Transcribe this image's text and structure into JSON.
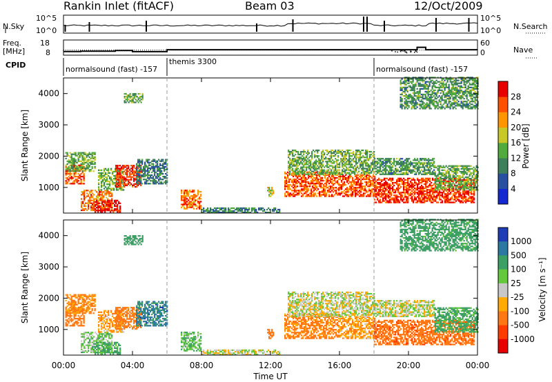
{
  "header": {
    "station": "Rankin Inlet (fitACF)",
    "beam": "Beam 03",
    "date": "12/Oct/2009"
  },
  "panel_labels": {
    "nsky": "N.Sky",
    "nsearch": "N.Search",
    "freq_line1": "Freq.",
    "freq_line2": "[MHz]",
    "nave": "Nave",
    "cpid": "CPID",
    "slant_range": "Slant Range [km]",
    "time_ut": "Time UT",
    "power_label": "Power [dB]",
    "velocity_label": "Velocity [m s⁻¹]"
  },
  "noise_axis": {
    "left_top": "10^5",
    "left_bottom": "10^0",
    "right_top": "10^5",
    "right_bottom": "10^0"
  },
  "freq_axis": {
    "left_top": "18",
    "left_bottom": "8",
    "right_top": "60",
    "right_bottom": "0"
  },
  "cpid_segments": [
    {
      "start_ut": 0,
      "end_ut": 6,
      "label": "normalsound (fast) -157"
    },
    {
      "start_ut": 6,
      "end_ut": 18,
      "label": "themis 3300"
    },
    {
      "start_ut": 18,
      "end_ut": 24,
      "label": "normalsound (fast) -157"
    }
  ],
  "time_ticks": [
    "00:00",
    "04:00",
    "08:00",
    "12:00",
    "16:00",
    "20:00",
    "00:00"
  ],
  "range_ticks": [
    "1000",
    "2000",
    "3000",
    "4000"
  ],
  "power_scale": {
    "ticks": [
      "4",
      "8",
      "12",
      "16",
      "20",
      "24",
      "28"
    ],
    "colors": [
      "#1428d2",
      "#2850a0",
      "#3c7f5a",
      "#50aa3c",
      "#c8c828",
      "#ff9600",
      "#ff5000",
      "#e60000"
    ]
  },
  "velocity_scale": {
    "ticks": [
      "1000",
      "500",
      "100",
      "25",
      "-25",
      "-100",
      "-500",
      "-1000"
    ],
    "colors": [
      "#1e3cb4",
      "#2d78a0",
      "#3ca064",
      "#64c83c",
      "#c8c8c8",
      "#ffaa00",
      "#ff7814",
      "#ff3c00",
      "#e60000"
    ]
  },
  "chart_data": {
    "type": "heatmap",
    "x_range_ut_hours": [
      0,
      24
    ],
    "y_range_km": [
      180,
      4500
    ],
    "dashed_time_markers_ut": [
      6,
      18
    ],
    "nave_level": 20,
    "frequency_segments": [
      {
        "start": 0.0,
        "end": 1.0,
        "freq_mhz": 10.4
      },
      {
        "start": 1.0,
        "end": 3.0,
        "freq_mhz": 10.6
      },
      {
        "start": 3.0,
        "end": 4.0,
        "freq_mhz": 11.1
      },
      {
        "start": 4.0,
        "end": 6.0,
        "freq_mhz": 10.3
      },
      {
        "start": 6.0,
        "end": 20.5,
        "freq_mhz": 11.6
      },
      {
        "start": 20.5,
        "end": 21.0,
        "freq_mhz": 13.2
      },
      {
        "start": 21.0,
        "end": 24.0,
        "freq_mhz": 11.6
      }
    ],
    "scatter_regions": [
      {
        "t0": 0.1,
        "t1": 1.2,
        "r0": 1100,
        "r1": 1700,
        "power_db": 26,
        "velocity": -300
      },
      {
        "t0": 0.1,
        "t1": 1.8,
        "r0": 1500,
        "r1": 2100,
        "power_db": 14,
        "velocity": -120
      },
      {
        "t0": 1.0,
        "t1": 2.8,
        "r0": 250,
        "r1": 900,
        "power_db": 24,
        "velocity": 60
      },
      {
        "t0": 1.8,
        "t1": 3.3,
        "r0": 200,
        "r1": 600,
        "power_db": 30,
        "velocity": 150
      },
      {
        "t0": 2.0,
        "t1": 3.5,
        "r0": 900,
        "r1": 1600,
        "power_db": 14,
        "velocity": -80
      },
      {
        "t0": 3.0,
        "t1": 4.5,
        "r0": 1000,
        "r1": 1700,
        "power_db": 28,
        "velocity": -200
      },
      {
        "t0": 4.2,
        "t1": 6.0,
        "r0": 1100,
        "r1": 1900,
        "power_db": 9,
        "velocity": 650
      },
      {
        "t0": 3.5,
        "t1": 4.6,
        "r0": 3700,
        "r1": 4000,
        "power_db": 14,
        "velocity": 300
      },
      {
        "t0": 6.8,
        "t1": 8.0,
        "r0": 300,
        "r1": 900,
        "power_db": 24,
        "velocity": 80
      },
      {
        "t0": 8.0,
        "t1": 12.5,
        "r0": 180,
        "r1": 350,
        "power_db": 10,
        "velocity": 0
      },
      {
        "t0": 11.8,
        "t1": 12.2,
        "r0": 700,
        "r1": 1000,
        "power_db": 18,
        "velocity": -300
      },
      {
        "t0": 12.8,
        "t1": 16.0,
        "r0": 700,
        "r1": 1500,
        "power_db": 26,
        "velocity": -150
      },
      {
        "t0": 16.0,
        "t1": 18.0,
        "r0": 700,
        "r1": 1400,
        "power_db": 26,
        "velocity": -80
      },
      {
        "t0": 18.0,
        "t1": 23.8,
        "r0": 500,
        "r1": 1300,
        "power_db": 28,
        "velocity": -350
      },
      {
        "t0": 13.0,
        "t1": 18.0,
        "r0": 1400,
        "r1": 2200,
        "power_db": 14,
        "velocity": 0
      },
      {
        "t0": 18.0,
        "t1": 21.5,
        "r0": 1400,
        "r1": 1900,
        "power_db": 12,
        "velocity": 0
      },
      {
        "t0": 21.5,
        "t1": 24.0,
        "r0": 900,
        "r1": 1700,
        "power_db": 14,
        "velocity": 150
      },
      {
        "t0": 19.5,
        "t1": 24.0,
        "r0": 3500,
        "r1": 4500,
        "power_db": 12,
        "velocity": 200
      }
    ]
  }
}
